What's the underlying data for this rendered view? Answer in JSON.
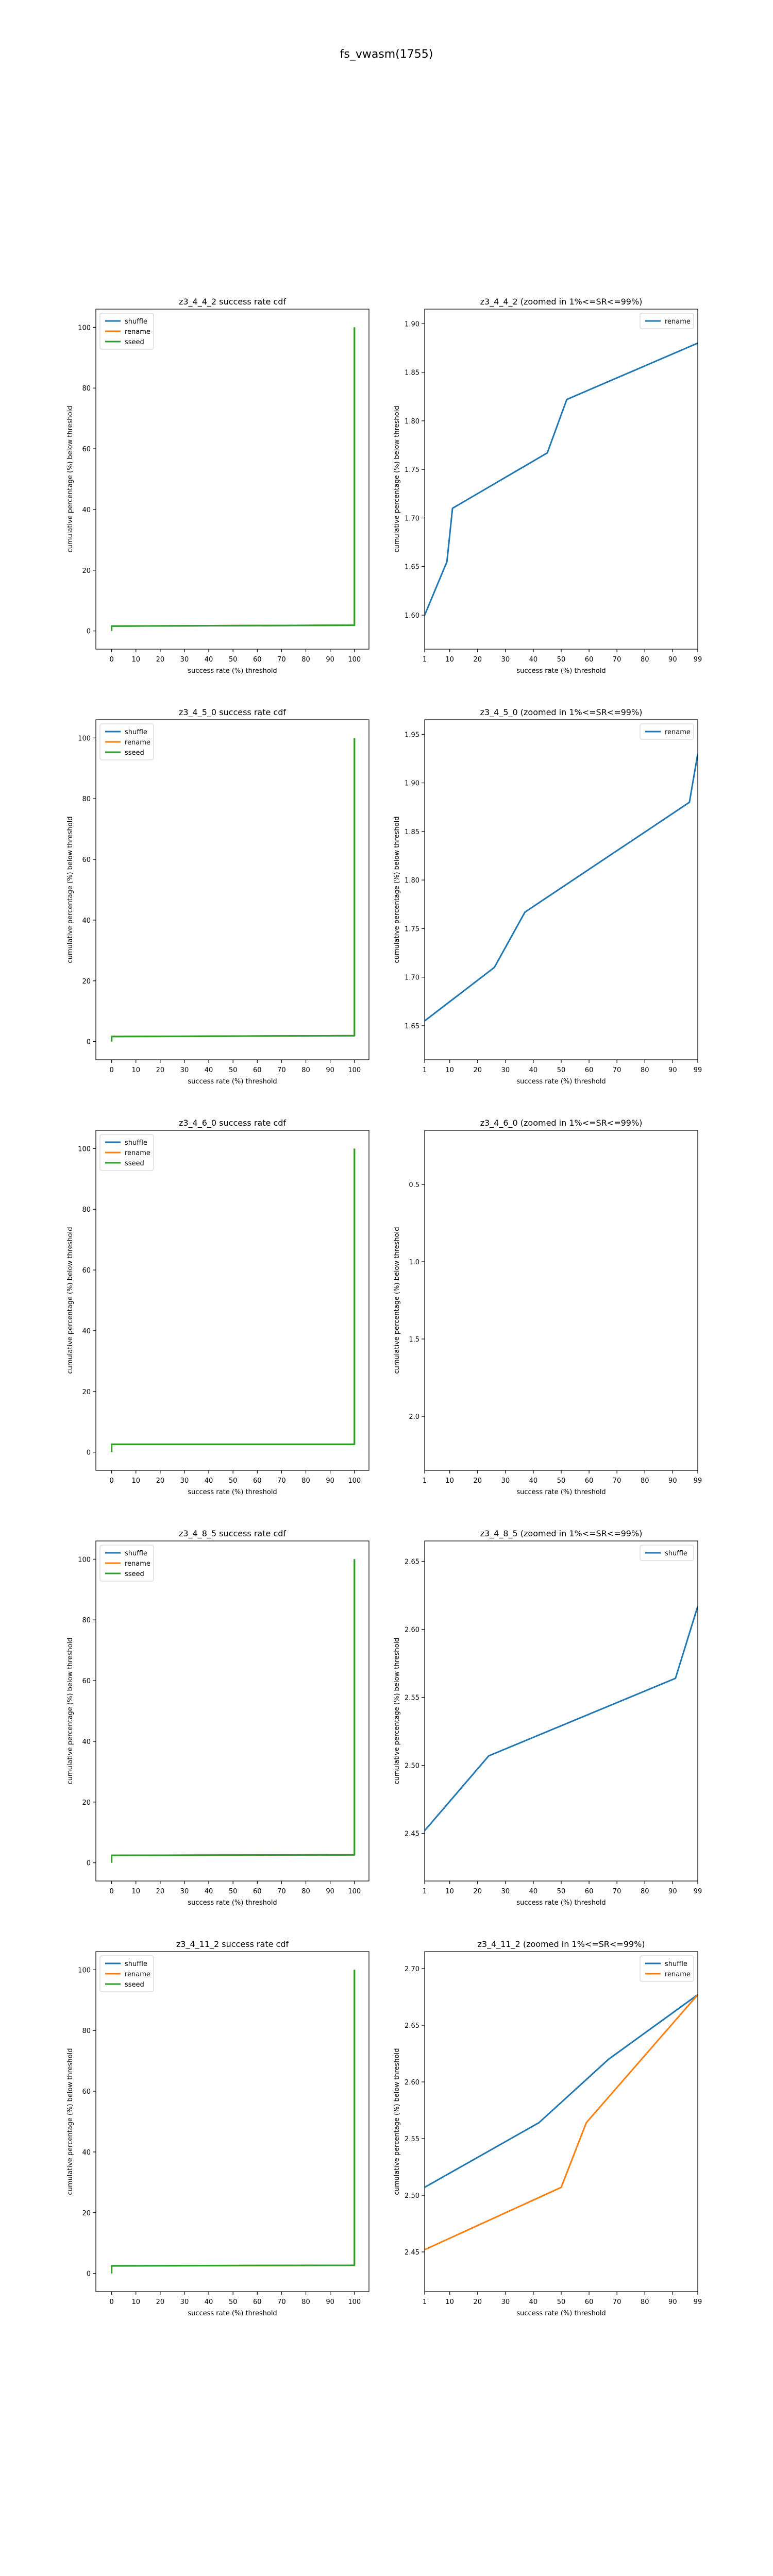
{
  "suptitle": "fs_vwasm(1755)",
  "colors": {
    "shuffle": "#1f77b4",
    "rename": "#ff7f0e",
    "sseed": "#2ca02c",
    "axis": "#000000",
    "background": "#ffffff"
  },
  "chart_data": [
    {
      "type": "line",
      "title": "z3_4_4_2 success rate cdf",
      "xlabel": "success rate (%) threshold",
      "ylabel": "cumulative percentage (%) below threshold",
      "xlim": [
        -6.5,
        106
      ],
      "ylim": [
        -6,
        106
      ],
      "xticks": [
        0,
        10,
        20,
        30,
        40,
        50,
        60,
        70,
        80,
        90,
        100
      ],
      "yticks": [
        0,
        20,
        40,
        60,
        80,
        100
      ],
      "legend": {
        "placement": "top-left",
        "entries": [
          "shuffle",
          "rename",
          "sseed"
        ]
      },
      "grid": false,
      "series": [
        {
          "name": "shuffle",
          "color": "#1f77b4",
          "x": [
            0,
            0,
            100,
            100
          ],
          "y": [
            0,
            1.6,
            1.88,
            100
          ]
        },
        {
          "name": "rename",
          "color": "#ff7f0e",
          "x": [
            0,
            0,
            100,
            100
          ],
          "y": [
            0,
            1.6,
            1.88,
            100
          ]
        },
        {
          "name": "sseed",
          "color": "#2ca02c",
          "x": [
            0,
            0,
            100,
            100
          ],
          "y": [
            0,
            1.6,
            1.88,
            100
          ]
        }
      ]
    },
    {
      "type": "line",
      "title": "z3_4_4_2 (zoomed in 1%<=SR<=99%)",
      "xlabel": "success rate (%) threshold",
      "ylabel": "cumulative percentage (%) below threshold",
      "xlim": [
        1,
        99
      ],
      "ylim": [
        1.565,
        1.915
      ],
      "xticks": [
        1,
        10,
        20,
        30,
        40,
        50,
        60,
        70,
        80,
        90,
        99
      ],
      "yticks": [
        "1.60",
        "1.65",
        "1.70",
        "1.75",
        "1.80",
        "1.85",
        "1.90"
      ],
      "yticks_values": [
        1.6,
        1.65,
        1.7,
        1.75,
        1.8,
        1.85,
        1.9
      ],
      "legend": {
        "placement": "top-right",
        "entries": [
          "rename"
        ]
      },
      "grid": false,
      "series": [
        {
          "name": "rename",
          "color": "#1f77b4",
          "x": [
            1,
            9,
            11,
            45,
            52,
            99
          ],
          "y": [
            1.6,
            1.655,
            1.71,
            1.767,
            1.822,
            1.88
          ]
        }
      ]
    },
    {
      "type": "line",
      "title": "z3_4_5_0 success rate cdf",
      "xlabel": "success rate (%) threshold",
      "ylabel": "cumulative percentage (%) below threshold",
      "xlim": [
        -6.5,
        106
      ],
      "ylim": [
        -6,
        106
      ],
      "xticks": [
        0,
        10,
        20,
        30,
        40,
        50,
        60,
        70,
        80,
        90,
        100
      ],
      "yticks": [
        0,
        20,
        40,
        60,
        80,
        100
      ],
      "legend": {
        "placement": "top-left",
        "entries": [
          "shuffle",
          "rename",
          "sseed"
        ]
      },
      "grid": false,
      "series": [
        {
          "name": "shuffle",
          "color": "#1f77b4",
          "x": [
            0,
            0,
            100,
            100
          ],
          "y": [
            0,
            1.65,
            1.93,
            100
          ]
        },
        {
          "name": "rename",
          "color": "#ff7f0e",
          "x": [
            0,
            0,
            100,
            100
          ],
          "y": [
            0,
            1.65,
            1.93,
            100
          ]
        },
        {
          "name": "sseed",
          "color": "#2ca02c",
          "x": [
            0,
            0,
            100,
            100
          ],
          "y": [
            0,
            1.65,
            1.93,
            100
          ]
        }
      ]
    },
    {
      "type": "line",
      "title": "z3_4_5_0 (zoomed in 1%<=SR<=99%)",
      "xlabel": "success rate (%) threshold",
      "ylabel": "cumulative percentage (%) below threshold",
      "xlim": [
        1,
        99
      ],
      "ylim": [
        1.615,
        1.965
      ],
      "xticks": [
        1,
        10,
        20,
        30,
        40,
        50,
        60,
        70,
        80,
        90,
        99
      ],
      "yticks": [
        "1.65",
        "1.70",
        "1.75",
        "1.80",
        "1.85",
        "1.90",
        "1.95"
      ],
      "yticks_values": [
        1.65,
        1.7,
        1.75,
        1.8,
        1.85,
        1.9,
        1.95
      ],
      "legend": {
        "placement": "top-right",
        "entries": [
          "rename"
        ]
      },
      "grid": false,
      "series": [
        {
          "name": "rename",
          "color": "#1f77b4",
          "x": [
            1,
            26,
            37,
            96,
            99
          ],
          "y": [
            1.655,
            1.71,
            1.767,
            1.88,
            1.93
          ]
        }
      ]
    },
    {
      "type": "line",
      "title": "z3_4_6_0 success rate cdf",
      "xlabel": "success rate (%) threshold",
      "ylabel": "cumulative percentage (%) below threshold",
      "xlim": [
        -6.5,
        106
      ],
      "ylim": [
        -6,
        106
      ],
      "xticks": [
        0,
        10,
        20,
        30,
        40,
        50,
        60,
        70,
        80,
        90,
        100
      ],
      "yticks": [
        0,
        20,
        40,
        60,
        80,
        100
      ],
      "legend": {
        "placement": "top-left",
        "entries": [
          "shuffle",
          "rename",
          "sseed"
        ]
      },
      "grid": false,
      "series": [
        {
          "name": "shuffle",
          "color": "#1f77b4",
          "x": [
            0,
            0,
            100,
            100
          ],
          "y": [
            0,
            2.6,
            2.6,
            100
          ]
        },
        {
          "name": "rename",
          "color": "#ff7f0e",
          "x": [
            0,
            0,
            100,
            100
          ],
          "y": [
            0,
            2.6,
            2.6,
            100
          ]
        },
        {
          "name": "sseed",
          "color": "#2ca02c",
          "x": [
            0,
            0,
            100,
            100
          ],
          "y": [
            0,
            2.6,
            2.6,
            100
          ]
        }
      ]
    },
    {
      "type": "line",
      "title": "z3_4_6_0 (zoomed in 1%<=SR<=99%)",
      "xlabel": "success rate (%) threshold",
      "ylabel": "cumulative percentage (%) below threshold",
      "xlim": [
        1,
        99
      ],
      "ylim": [
        0.15,
        2.35
      ],
      "yinverted": true,
      "xticks": [
        1,
        10,
        20,
        30,
        40,
        50,
        60,
        70,
        80,
        90,
        99
      ],
      "yticks": [
        "0.5",
        "1.0",
        "1.5",
        "2.0"
      ],
      "yticks_values": [
        0.5,
        1.0,
        1.5,
        2.0
      ],
      "legend": {
        "placement": "none",
        "entries": []
      },
      "grid": false,
      "series": []
    },
    {
      "type": "line",
      "title": "z3_4_8_5 success rate cdf",
      "xlabel": "success rate (%) threshold",
      "ylabel": "cumulative percentage (%) below threshold",
      "xlim": [
        -6.5,
        106
      ],
      "ylim": [
        -6,
        106
      ],
      "xticks": [
        0,
        10,
        20,
        30,
        40,
        50,
        60,
        70,
        80,
        90,
        100
      ],
      "yticks": [
        0,
        20,
        40,
        60,
        80,
        100
      ],
      "legend": {
        "placement": "top-left",
        "entries": [
          "shuffle",
          "rename",
          "sseed"
        ]
      },
      "grid": false,
      "series": [
        {
          "name": "shuffle",
          "color": "#1f77b4",
          "x": [
            0,
            0,
            100,
            100
          ],
          "y": [
            0,
            2.45,
            2.62,
            100
          ]
        },
        {
          "name": "rename",
          "color": "#ff7f0e",
          "x": [
            0,
            0,
            100,
            100
          ],
          "y": [
            0,
            2.45,
            2.62,
            100
          ]
        },
        {
          "name": "sseed",
          "color": "#2ca02c",
          "x": [
            0,
            0,
            100,
            100
          ],
          "y": [
            0,
            2.45,
            2.62,
            100
          ]
        }
      ]
    },
    {
      "type": "line",
      "title": "z3_4_8_5 (zoomed in 1%<=SR<=99%)",
      "xlabel": "success rate (%) threshold",
      "ylabel": "cumulative percentage (%) below threshold",
      "xlim": [
        1,
        99
      ],
      "ylim": [
        2.415,
        2.665
      ],
      "xticks": [
        1,
        10,
        20,
        30,
        40,
        50,
        60,
        70,
        80,
        90,
        99
      ],
      "yticks": [
        "2.45",
        "2.50",
        "2.55",
        "2.60",
        "2.65"
      ],
      "yticks_values": [
        2.45,
        2.5,
        2.55,
        2.6,
        2.65
      ],
      "legend": {
        "placement": "top-right",
        "entries": [
          "shuffle"
        ]
      },
      "grid": false,
      "series": [
        {
          "name": "shuffle",
          "color": "#1f77b4",
          "x": [
            1,
            24,
            91,
            99
          ],
          "y": [
            2.452,
            2.507,
            2.564,
            2.617
          ]
        }
      ]
    },
    {
      "type": "line",
      "title": "z3_4_11_2 success rate cdf",
      "xlabel": "success rate (%) threshold",
      "ylabel": "cumulative percentage (%) below threshold",
      "xlim": [
        -6.5,
        106
      ],
      "ylim": [
        -6,
        106
      ],
      "xticks": [
        0,
        10,
        20,
        30,
        40,
        50,
        60,
        70,
        80,
        90,
        100
      ],
      "yticks": [
        0,
        20,
        40,
        60,
        80,
        100
      ],
      "legend": {
        "placement": "top-left",
        "entries": [
          "shuffle",
          "rename",
          "sseed"
        ]
      },
      "grid": false,
      "series": [
        {
          "name": "shuffle",
          "color": "#1f77b4",
          "x": [
            0,
            0,
            100,
            100
          ],
          "y": [
            0,
            2.5,
            2.68,
            100
          ]
        },
        {
          "name": "rename",
          "color": "#ff7f0e",
          "x": [
            0,
            0,
            100,
            100
          ],
          "y": [
            0,
            2.45,
            2.68,
            100
          ]
        },
        {
          "name": "sseed",
          "color": "#2ca02c",
          "x": [
            0,
            0,
            100,
            100
          ],
          "y": [
            0,
            2.5,
            2.68,
            100
          ]
        }
      ]
    },
    {
      "type": "line",
      "title": "z3_4_11_2 (zoomed in 1%<=SR<=99%)",
      "xlabel": "success rate (%) threshold",
      "ylabel": "cumulative percentage (%) below threshold",
      "xlim": [
        1,
        99
      ],
      "ylim": [
        2.415,
        2.715
      ],
      "xticks": [
        1,
        10,
        20,
        30,
        40,
        50,
        60,
        70,
        80,
        90,
        99
      ],
      "yticks": [
        "2.45",
        "2.50",
        "2.55",
        "2.60",
        "2.65",
        "2.70"
      ],
      "yticks_values": [
        2.45,
        2.5,
        2.55,
        2.6,
        2.65,
        2.7
      ],
      "legend": {
        "placement": "top-right",
        "entries": [
          "shuffle",
          "rename"
        ]
      },
      "grid": false,
      "series": [
        {
          "name": "shuffle",
          "color": "#1f77b4",
          "x": [
            1,
            42,
            67,
            99
          ],
          "y": [
            2.507,
            2.564,
            2.62,
            2.677
          ]
        },
        {
          "name": "rename",
          "color": "#ff7f0e",
          "x": [
            1,
            50,
            59,
            99
          ],
          "y": [
            2.452,
            2.507,
            2.564,
            2.677
          ]
        }
      ]
    }
  ]
}
